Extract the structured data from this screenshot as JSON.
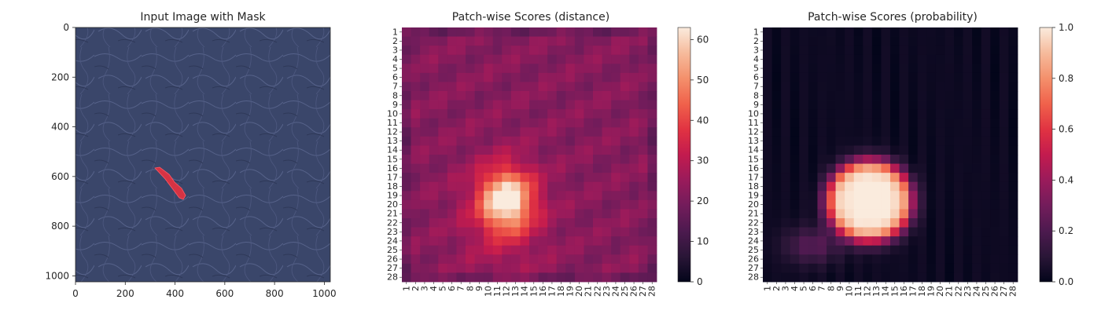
{
  "figure": {
    "panels": [
      {
        "title": "Input Image with Mask"
      },
      {
        "title": "Patch-wise Scores (distance)"
      },
      {
        "title": "Patch-wise Scores (probability)"
      }
    ]
  },
  "colors": {
    "leather_base": "#3a466a",
    "mask_red": "#e8313f"
  },
  "icons": [
    "leather-texture-image",
    "red-defect-mask"
  ],
  "chart_data": [
    {
      "type": "image",
      "title": "Input Image with Mask",
      "xlim": [
        0,
        1024
      ],
      "ylim": [
        1024,
        0
      ],
      "xticks": [
        0,
        200,
        400,
        600,
        800,
        1000
      ],
      "yticks": [
        0,
        200,
        400,
        600,
        800,
        1000
      ],
      "mask_region": {
        "x": [
          320,
          440
        ],
        "y": [
          560,
          690
        ]
      }
    },
    {
      "type": "heatmap",
      "title": "Patch-wise Scores (distance)",
      "grid": [
        28,
        28
      ],
      "tick_labels": [
        "1",
        "2",
        "3",
        "4",
        "5",
        "6",
        "7",
        "8",
        "9",
        "10",
        "11",
        "12",
        "13",
        "14",
        "15",
        "16",
        "17",
        "18",
        "19",
        "20",
        "21",
        "22",
        "23",
        "24",
        "25",
        "26",
        "27",
        "28"
      ],
      "colorbar": {
        "min": 0,
        "max": 63,
        "ticks": [
          0,
          10,
          20,
          30,
          40,
          50,
          60
        ]
      },
      "background": 22,
      "blobs": [
        {
          "cx": 12,
          "cy": 19.5,
          "sx": 2.0,
          "sy": 2.3,
          "amp": 40
        },
        {
          "cx": 11.5,
          "cy": 21.5,
          "sx": 3.5,
          "sy": 4.5,
          "amp": 8
        }
      ],
      "peak": {
        "col": 12,
        "row": 19,
        "value": 63
      }
    },
    {
      "type": "heatmap",
      "title": "Patch-wise Scores (probability)",
      "grid": [
        28,
        28
      ],
      "tick_labels": [
        "1",
        "2",
        "3",
        "4",
        "5",
        "6",
        "7",
        "8",
        "9",
        "10",
        "11",
        "12",
        "13",
        "14",
        "15",
        "16",
        "17",
        "18",
        "19",
        "20",
        "21",
        "22",
        "23",
        "24",
        "25",
        "26",
        "27",
        "28"
      ],
      "colorbar": {
        "min": 0.0,
        "max": 1.0,
        "ticks": [
          "0.0",
          "0.2",
          "0.4",
          "0.6",
          "0.8",
          "1.0"
        ]
      },
      "high_region": {
        "cols": [
          7,
          18
        ],
        "rows": [
          15,
          24
        ],
        "value": 0.95
      },
      "halo_value": 0.2
    }
  ]
}
